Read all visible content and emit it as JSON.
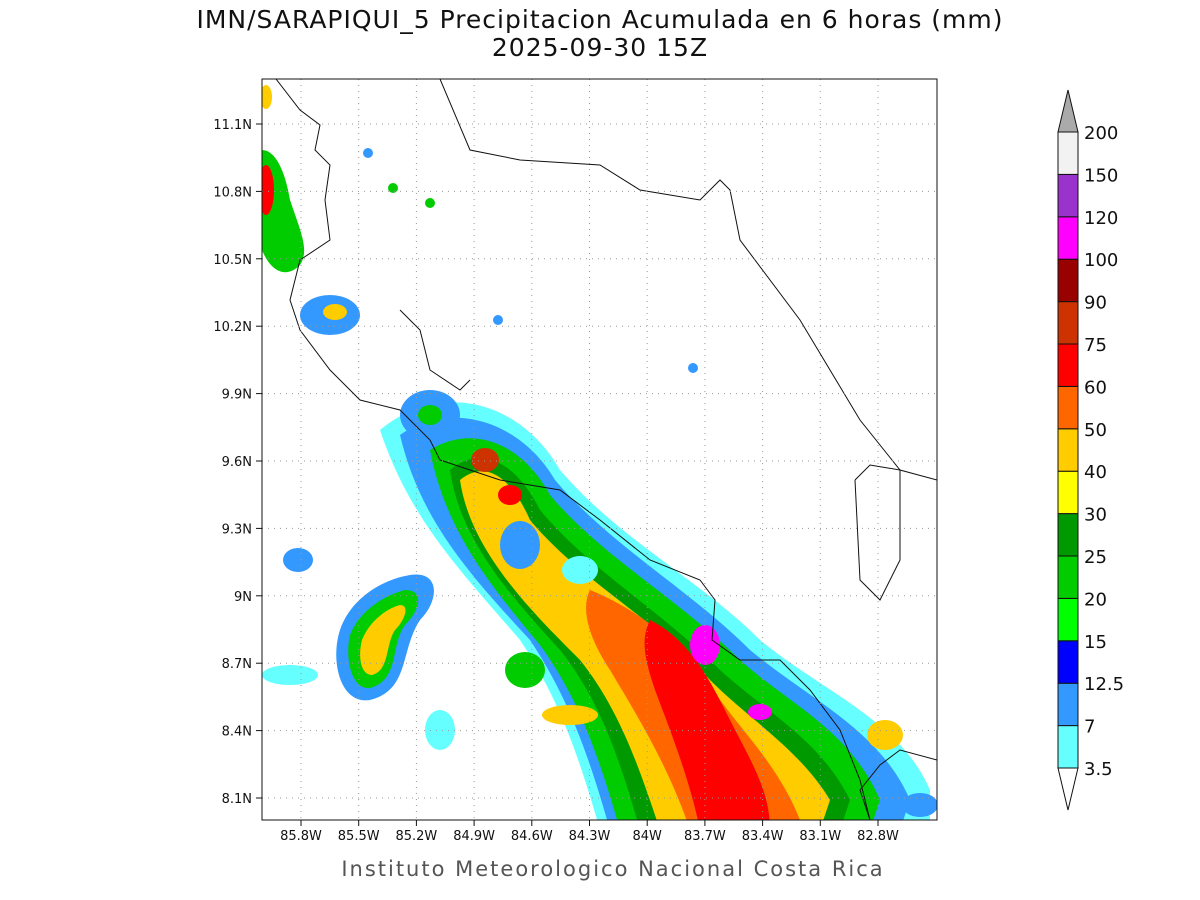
{
  "title": "IMN/SARAPIQUI_5 Precipitacion Acumulada en 6 horas (mm)",
  "subtitle": "2025-09-30 15Z",
  "map": {
    "lon_labels": [
      "85.8W",
      "85.5W",
      "85.2W",
      "84.9W",
      "84.6W",
      "84.3W",
      "84W",
      "83.7W",
      "83.4W",
      "83.1W",
      "82.8W"
    ],
    "lat_labels": [
      "11.1N",
      "10.8N",
      "10.5N",
      "10.2N",
      "9.9N",
      "9.6N",
      "9.3N",
      "9N",
      "8.7N",
      "8.4N",
      "8.1N"
    ]
  },
  "colorbar": {
    "levels": [
      3.5,
      7,
      12.5,
      15,
      20,
      25,
      30,
      40,
      50,
      60,
      75,
      90,
      100,
      120,
      150,
      200
    ],
    "colors": [
      "#66ffff",
      "#3399ff",
      "#0000ff",
      "#00ff00",
      "#00cc00",
      "#009900",
      "#ffff00",
      "#ffcc00",
      "#ff6600",
      "#ff0000",
      "#cc3300",
      "#990000",
      "#ff00ff",
      "#9933cc",
      "#f2f2f2"
    ],
    "below_color": "#ffffff",
    "above_color": "#aaaaaa"
  },
  "footer": "Instituto Meteorologico Nacional Costa Rica"
}
